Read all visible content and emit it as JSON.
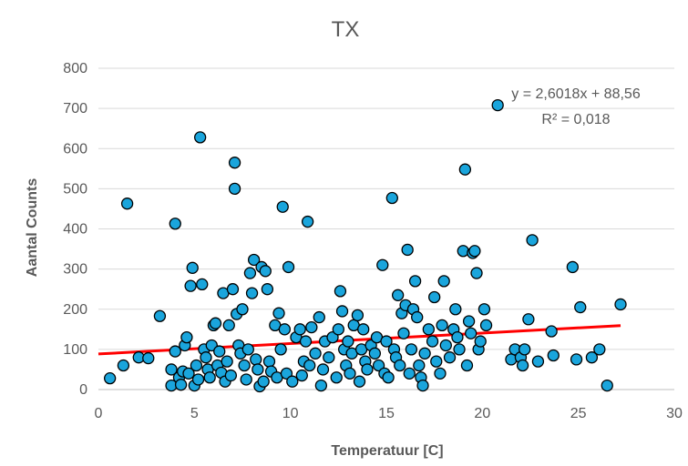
{
  "chart_data": {
    "type": "scatter",
    "title": "TX",
    "xlabel": "Temperatuur [C]",
    "ylabel": "Aantal Counts",
    "xlim": [
      0,
      30
    ],
    "ylim": [
      0,
      800
    ],
    "x_ticks": [
      "0",
      "5",
      "10",
      "15",
      "20",
      "25",
      "30"
    ],
    "y_ticks": [
      "0",
      "100",
      "200",
      "300",
      "400",
      "500",
      "600",
      "700",
      "800"
    ],
    "grid": "horizontal",
    "trendline": {
      "equation": "y = 2,6018x + 88,56",
      "r_squared": "R² = 0,018",
      "slope": 2.6018,
      "intercept": 88.56,
      "x_range": [
        0,
        27.2
      ],
      "color": "#ff0000"
    },
    "marker_color": "#1aa5dc",
    "marker_edge_color": "#000000",
    "points": [
      [
        0.6,
        28
      ],
      [
        1.3,
        60
      ],
      [
        1.5,
        463
      ],
      [
        2.1,
        80
      ],
      [
        2.6,
        78
      ],
      [
        3.2,
        183
      ],
      [
        3.8,
        10
      ],
      [
        3.8,
        50
      ],
      [
        4.0,
        413
      ],
      [
        4.0,
        95
      ],
      [
        4.2,
        30
      ],
      [
        4.3,
        12
      ],
      [
        4.4,
        45
      ],
      [
        4.5,
        110
      ],
      [
        4.6,
        130
      ],
      [
        4.7,
        40
      ],
      [
        4.8,
        258
      ],
      [
        4.9,
        303
      ],
      [
        5.0,
        10
      ],
      [
        5.1,
        60
      ],
      [
        5.2,
        25
      ],
      [
        5.3,
        628
      ],
      [
        5.4,
        262
      ],
      [
        5.5,
        100
      ],
      [
        5.6,
        80
      ],
      [
        5.7,
        50
      ],
      [
        5.8,
        30
      ],
      [
        5.9,
        110
      ],
      [
        6.0,
        160
      ],
      [
        6.1,
        165
      ],
      [
        6.2,
        60
      ],
      [
        6.3,
        95
      ],
      [
        6.4,
        42
      ],
      [
        6.5,
        240
      ],
      [
        6.6,
        20
      ],
      [
        6.7,
        70
      ],
      [
        6.8,
        160
      ],
      [
        6.9,
        35
      ],
      [
        7.0,
        250
      ],
      [
        7.1,
        565
      ],
      [
        7.1,
        500
      ],
      [
        7.2,
        188
      ],
      [
        7.3,
        110
      ],
      [
        7.4,
        90
      ],
      [
        7.5,
        200
      ],
      [
        7.6,
        60
      ],
      [
        7.7,
        25
      ],
      [
        7.8,
        100
      ],
      [
        7.9,
        290
      ],
      [
        8.0,
        240
      ],
      [
        8.1,
        323
      ],
      [
        8.2,
        75
      ],
      [
        8.3,
        50
      ],
      [
        8.4,
        8
      ],
      [
        8.5,
        305
      ],
      [
        8.6,
        20
      ],
      [
        8.7,
        295
      ],
      [
        8.8,
        250
      ],
      [
        8.9,
        70
      ],
      [
        9.0,
        45
      ],
      [
        9.2,
        160
      ],
      [
        9.3,
        30
      ],
      [
        9.4,
        190
      ],
      [
        9.5,
        100
      ],
      [
        9.6,
        455
      ],
      [
        9.7,
        150
      ],
      [
        9.8,
        40
      ],
      [
        9.9,
        305
      ],
      [
        10.1,
        20
      ],
      [
        10.3,
        130
      ],
      [
        10.5,
        150
      ],
      [
        10.6,
        35
      ],
      [
        10.7,
        70
      ],
      [
        10.8,
        120
      ],
      [
        10.9,
        418
      ],
      [
        11.0,
        60
      ],
      [
        11.1,
        155
      ],
      [
        11.3,
        90
      ],
      [
        11.5,
        180
      ],
      [
        11.6,
        10
      ],
      [
        11.7,
        50
      ],
      [
        11.8,
        120
      ],
      [
        12.0,
        80
      ],
      [
        12.2,
        130
      ],
      [
        12.4,
        30
      ],
      [
        12.5,
        150
      ],
      [
        12.6,
        245
      ],
      [
        12.7,
        195
      ],
      [
        12.8,
        100
      ],
      [
        12.9,
        60
      ],
      [
        13.0,
        120
      ],
      [
        13.1,
        40
      ],
      [
        13.2,
        90
      ],
      [
        13.3,
        160
      ],
      [
        13.5,
        185
      ],
      [
        13.6,
        20
      ],
      [
        13.7,
        100
      ],
      [
        13.8,
        150
      ],
      [
        13.9,
        70
      ],
      [
        14.0,
        50
      ],
      [
        14.2,
        110
      ],
      [
        14.4,
        90
      ],
      [
        14.5,
        130
      ],
      [
        14.6,
        60
      ],
      [
        14.8,
        310
      ],
      [
        14.9,
        40
      ],
      [
        15.0,
        120
      ],
      [
        15.1,
        30
      ],
      [
        15.3,
        477
      ],
      [
        15.4,
        100
      ],
      [
        15.5,
        80
      ],
      [
        15.6,
        235
      ],
      [
        15.7,
        60
      ],
      [
        15.8,
        190
      ],
      [
        15.9,
        140
      ],
      [
        16.0,
        210
      ],
      [
        16.1,
        348
      ],
      [
        16.2,
        40
      ],
      [
        16.3,
        100
      ],
      [
        16.4,
        200
      ],
      [
        16.5,
        270
      ],
      [
        16.6,
        180
      ],
      [
        16.7,
        60
      ],
      [
        16.8,
        30
      ],
      [
        16.9,
        10
      ],
      [
        17.0,
        90
      ],
      [
        17.2,
        150
      ],
      [
        17.4,
        120
      ],
      [
        17.5,
        230
      ],
      [
        17.6,
        70
      ],
      [
        17.8,
        40
      ],
      [
        17.9,
        160
      ],
      [
        18.0,
        270
      ],
      [
        18.1,
        110
      ],
      [
        18.3,
        80
      ],
      [
        18.5,
        150
      ],
      [
        18.6,
        200
      ],
      [
        18.7,
        130
      ],
      [
        18.8,
        100
      ],
      [
        19.0,
        345
      ],
      [
        19.1,
        548
      ],
      [
        19.2,
        60
      ],
      [
        19.3,
        170
      ],
      [
        19.4,
        140
      ],
      [
        19.5,
        340
      ],
      [
        19.6,
        345
      ],
      [
        19.7,
        290
      ],
      [
        19.8,
        100
      ],
      [
        19.9,
        120
      ],
      [
        20.1,
        200
      ],
      [
        20.2,
        160
      ],
      [
        20.8,
        708
      ],
      [
        21.5,
        75
      ],
      [
        21.7,
        100
      ],
      [
        22.0,
        80
      ],
      [
        22.1,
        60
      ],
      [
        22.2,
        100
      ],
      [
        22.4,
        175
      ],
      [
        22.6,
        372
      ],
      [
        22.9,
        70
      ],
      [
        23.6,
        145
      ],
      [
        23.7,
        85
      ],
      [
        24.7,
        305
      ],
      [
        24.9,
        75
      ],
      [
        25.1,
        205
      ],
      [
        25.7,
        80
      ],
      [
        26.1,
        100
      ],
      [
        26.5,
        10
      ],
      [
        27.2,
        212
      ]
    ]
  }
}
